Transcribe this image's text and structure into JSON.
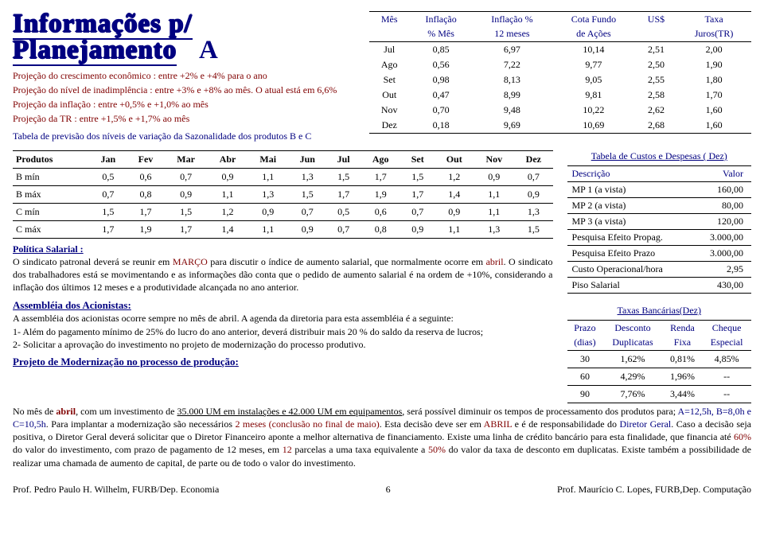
{
  "title": "Informações p/ Planejamento",
  "title_letter": "A",
  "projections": [
    "Projeção do crescimento econômico : entre +2%  e +4% para o ano",
    "Projeção do nível de inadimplência  : entre +3%  e +8% ao mês. O atual está em 6,6%",
    "Projeção da inflação                           : entre  +0,5%  e  +1,0% ao mês",
    "Projeção da TR                                    : entre  +1,5%  e  +1,7% ao mês"
  ],
  "tabela_label": "Tabela de previsão dos níveis de variação da Sazonalidade dos produtos B e C",
  "inflacao": {
    "head": [
      [
        "Mês",
        "Inflação",
        "Inflação %",
        "Cota Fundo",
        "US$",
        "Taxa"
      ],
      [
        "",
        "% Mês",
        "12 meses",
        "de Ações",
        "",
        "Juros(TR)"
      ]
    ],
    "rows": [
      [
        "Jul",
        "0,85",
        "6,97",
        "10,14",
        "2,51",
        "2,00"
      ],
      [
        "Ago",
        "0,56",
        "7,22",
        "9,77",
        "2,50",
        "1,90"
      ],
      [
        "Set",
        "0,98",
        "8,13",
        "9,05",
        "2,55",
        "1,80"
      ],
      [
        "Out",
        "0,47",
        "8,99",
        "9,81",
        "2,58",
        "1,70"
      ],
      [
        "Nov",
        "0,70",
        "9,48",
        "10,22",
        "2,62",
        "1,60"
      ],
      [
        "Dez",
        "0,18",
        "9,69",
        "10,69",
        "2,68",
        "1,60"
      ]
    ]
  },
  "seasonal": {
    "head": [
      "Produtos",
      "Jan",
      "Fev",
      "Mar",
      "Abr",
      "Mai",
      "Jun",
      "Jul",
      "Ago",
      "Set",
      "Out",
      "Nov",
      "Dez"
    ],
    "rows": [
      [
        "B   mín",
        "0,5",
        "0,6",
        "0,7",
        "0,9",
        "1,1",
        "1,3",
        "1,5",
        "1,7",
        "1,5",
        "1,2",
        "0,9",
        "0,7"
      ],
      [
        "B   máx",
        "0,7",
        "0,8",
        "0,9",
        "1,1",
        "1,3",
        "1,5",
        "1,7",
        "1,9",
        "1,7",
        "1,4",
        "1,1",
        "0,9"
      ],
      [
        "C   mín",
        "1,5",
        "1,7",
        "1,5",
        "1,2",
        "0,9",
        "0,7",
        "0,5",
        "0,6",
        "0,7",
        "0,9",
        "1,1",
        "1,3"
      ],
      [
        "C   máx",
        "1,7",
        "1,9",
        "1,7",
        "1,4",
        "1,1",
        "0,9",
        "0,7",
        "0,8",
        "0,9",
        "1,1",
        "1,3",
        "1,5"
      ]
    ]
  },
  "politica": {
    "heading": "Política Salarial :",
    "text_a": "O sindicato patronal deverá se reunir em ",
    "text_b": "MARÇO",
    "text_c": " para discutir o índice de aumento salarial, que normalmente ocorre em ",
    "text_d": "abril",
    "text_e": ". O sindicato dos trabalhadores está se movimentando e as informações dão conta que o pedido de aumento salarial é na ordem de +10%, considerando a inflação dos últimos 12 meses e a produtividade alcançada no ano anterior."
  },
  "assembleia": {
    "heading": "Assembléia dos Acionistas:",
    "text": "A assembléia dos acionistas ocorre sempre no mês de abril. A agenda da diretoria para esta assembléia é a seguinte:",
    "items": [
      "1-    Além do pagamento mínimo de 25% do lucro do ano anterior, deverá distribuir  mais 20 % do saldo da reserva de lucros;",
      "2-    Solicitar a aprovação do investimento no projeto de modernização do processo produtivo."
    ]
  },
  "projeto": {
    "heading": "Projeto de Modernização no processo de produção:",
    "p1_a": "No mês de ",
    "p1_b": "abril",
    "p1_c": ", com um investimento de ",
    "p1_d": "35.000 UM em instalações e 42.000 UM em equipamentos",
    "p1_e": ", será possível diminuir os tempos de processamento dos produtos para; ",
    "p1_f": "A=12,5h, B=8,0h e C=10,5h",
    "p1_g": ". Para implantar a modernização são necessários ",
    "p1_h": "2 meses (conclusão no final de maio)",
    "p1_i": ". Esta decisão deve ser em ",
    "p1_j": "ABRIL",
    "p1_k": " e é de responsabilidade do ",
    "p1_l": "Diretor Geral",
    "p1_m": ". Caso a decisão seja positiva, o Diretor Geral deverá solicitar que o Diretor Financeiro aponte a melhor alternativa de financiamento. Existe uma linha de crédito bancário para esta finalidade, que financia até ",
    "p1_n": "60%",
    "p1_o": " do valor do investimento, com prazo de pagamento de 12 meses, em ",
    "p1_p": "12",
    "p1_q": " parcelas a uma taxa equivalente a ",
    "p1_r": "50%",
    "p1_s": " do valor da taxa de desconto em duplicatas. Existe também a possibilidade de realizar uma chamada de aumento de capital, de parte ou de todo o valor do investimento."
  },
  "costs": {
    "title": "Tabela  de Custos e Despesas ( Dez)",
    "head": [
      "Descrição",
      "Valor"
    ],
    "rows": [
      [
        "MP 1 (a vista)",
        "160,00"
      ],
      [
        "MP 2 (a vista)",
        "80,00"
      ],
      [
        "MP 3 (a vista)",
        "120,00"
      ],
      [
        "Pesquisa Efeito Propag.",
        "3.000,00"
      ],
      [
        "Pesquisa Efeito Prazo",
        "3.000,00"
      ],
      [
        "Custo Operacional/hora",
        "2,95"
      ],
      [
        "Piso Salarial",
        "430,00"
      ]
    ]
  },
  "bank": {
    "title": "Taxas Bancárias(Dez)",
    "head": [
      [
        "Prazo",
        "Desconto",
        "Renda",
        "Cheque"
      ],
      [
        "(dias)",
        "Duplicatas",
        "Fixa",
        "Especial"
      ]
    ],
    "rows": [
      [
        "30",
        "1,62%",
        "0,81%",
        "4,85%"
      ],
      [
        "60",
        "4,29%",
        "1,96%",
        "--"
      ],
      [
        "90",
        "7,76%",
        "3,44%",
        "--"
      ]
    ]
  },
  "footer": {
    "left": "Prof. Pedro Paulo H. Wilhelm, FURB/Dep. Economia",
    "page": "6",
    "right": "Prof. Maurício C. Lopes, FURB,Dep. Computação"
  }
}
